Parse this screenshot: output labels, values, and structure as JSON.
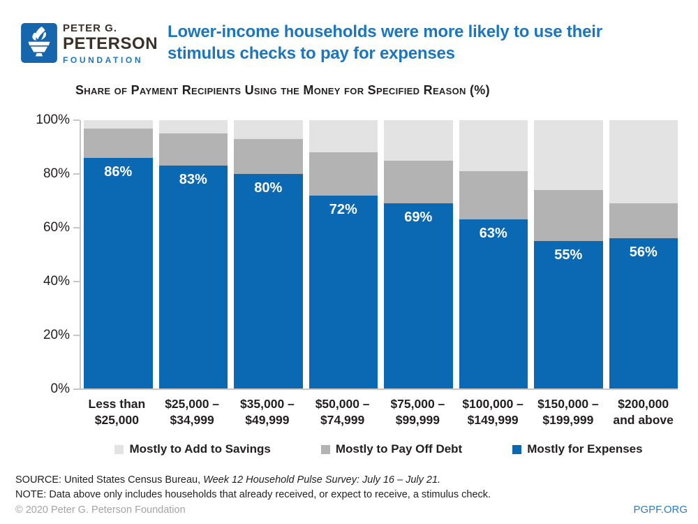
{
  "logo": {
    "line1": "PETER G.",
    "line2": "PETERSON",
    "line3": "FOUNDATION"
  },
  "header": {
    "title_line1": "Lower-income households were more likely to use their",
    "title_line2": "stimulus checks to pay for expenses"
  },
  "chart_data": {
    "type": "bar",
    "stacked": true,
    "title": "Share of Payment Recipients Using the Money for Specified Reason (%)",
    "xlabel": "",
    "ylabel": "",
    "ylim": [
      0,
      100
    ],
    "grid": false,
    "legend_position": "bottom",
    "y_ticks": [
      "100%",
      "80%",
      "60%",
      "40%",
      "20%",
      "0%"
    ],
    "categories": [
      [
        "Less than",
        "$25,000"
      ],
      [
        "$25,000 –",
        "$34,999"
      ],
      [
        "$35,000 –",
        "$49,999"
      ],
      [
        "$50,000 –",
        "$74,999"
      ],
      [
        "$75,000 –",
        "$99,999"
      ],
      [
        "$100,000 –",
        "$149,999"
      ],
      [
        "$150,000 –",
        "$199,999"
      ],
      [
        "$200,000",
        "and above"
      ]
    ],
    "series": [
      {
        "key": "expenses",
        "name": "Mostly for Expenses",
        "color": "#0a69b2",
        "values": [
          86,
          83,
          80,
          72,
          69,
          63,
          55,
          56
        ],
        "show_labels": true
      },
      {
        "key": "debt",
        "name": "Mostly to Pay Off Debt",
        "color": "#b4b3b3",
        "values": [
          11,
          12,
          13,
          16,
          16,
          18,
          19,
          13
        ],
        "show_labels": false
      },
      {
        "key": "savings",
        "name": "Mostly to Add to Savings",
        "color": "#e4e3e3",
        "values": [
          3,
          5,
          7,
          12,
          15,
          19,
          26,
          31
        ],
        "show_labels": false
      }
    ],
    "legend_order": [
      "savings",
      "debt",
      "expenses"
    ]
  },
  "colors": {
    "accent_blue": "#0a69b2",
    "title_blue": "#1b76bd",
    "logo_blue": "#1566ad",
    "axis_gray": "#c6c6c6",
    "footer_gray": "#a5a3a4"
  },
  "footer": {
    "source_label": "SOURCE: ",
    "source_regular": "United States Census Bureau, ",
    "source_italic": "Week 12 Household Pulse Survey: July 16 – July 21.",
    "note": "NOTE: Data above only includes households that already received, or expect to receive, a stimulus check.",
    "copyright": "© 2020 Peter G. Peterson Foundation",
    "site": "PGPF.ORG"
  }
}
